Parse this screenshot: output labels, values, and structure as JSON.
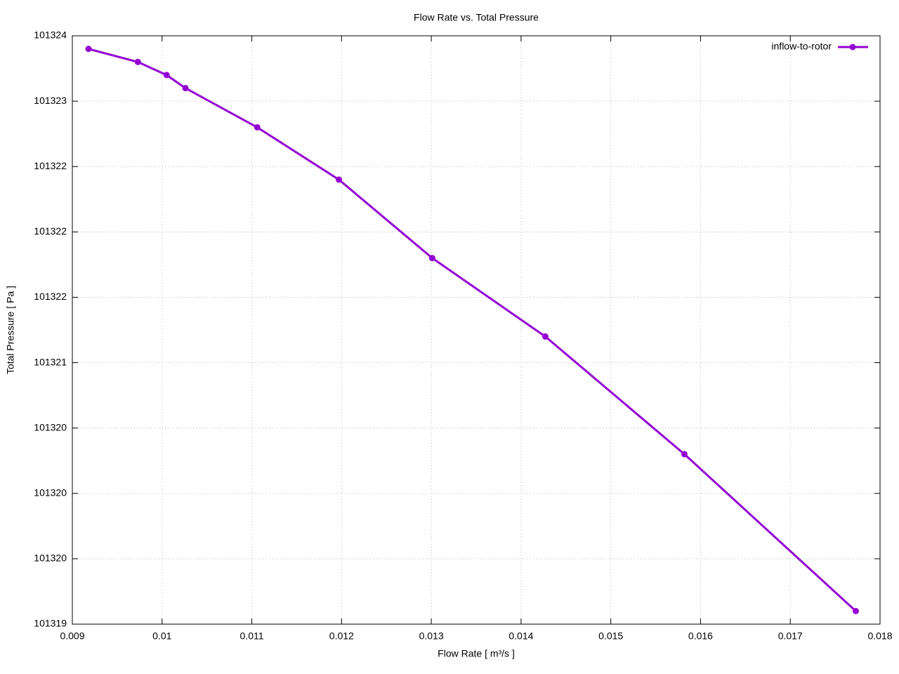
{
  "chart_data": {
    "type": "line",
    "title": "Flow Rate vs. Total Pressure",
    "xlabel": "Flow Rate [ m³/s ]",
    "ylabel": "Total Pressure [ Pa ]",
    "x": [
      0.00918,
      0.00973,
      0.01005,
      0.01026,
      0.01106,
      0.01197,
      0.01301,
      0.01427,
      0.01582,
      0.01773
    ],
    "series": [
      {
        "name": "inflow-to-rotor",
        "color": "#9400d3",
        "values": [
          101323.4,
          101323.3,
          101323.2,
          101323.1,
          101322.8,
          101322.4,
          101321.8,
          101321.2,
          101320.3,
          101319.1
        ]
      }
    ],
    "xlim": [
      0.009,
      0.018
    ],
    "xticks": [
      0.009,
      0.01,
      0.011,
      0.012,
      0.013,
      0.014,
      0.015,
      0.016,
      0.017,
      0.018
    ],
    "ylim": [
      101319,
      101323.5
    ],
    "yticks": [
      101319,
      {
        "value": 101319.5,
        "label": "101320"
      },
      101320,
      {
        "value": 101320.5,
        "label": "101320"
      },
      101321,
      {
        "value": 101321.5,
        "label": "101322"
      },
      101322,
      {
        "value": 101322.5,
        "label": "101322"
      },
      101323,
      {
        "value": 101323.5,
        "label": "101324"
      }
    ],
    "grid": true,
    "legend": "top-right"
  }
}
